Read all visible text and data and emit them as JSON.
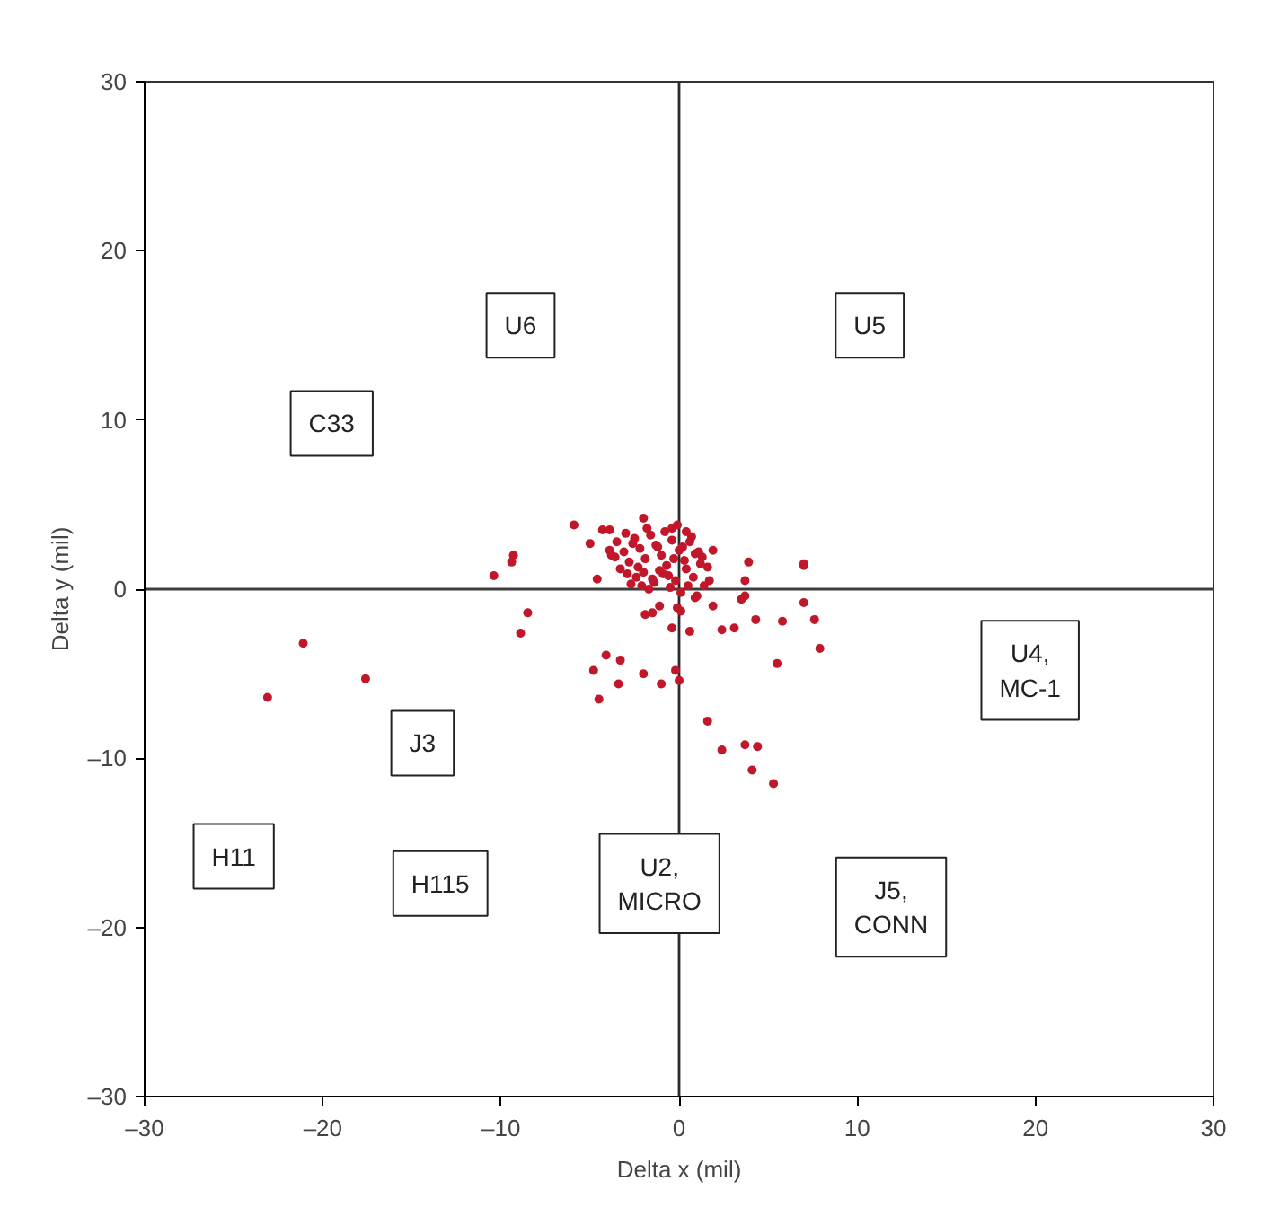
{
  "chart_data": {
    "type": "scatter",
    "xlabel": "Delta x (mil)",
    "ylabel": "Delta y (mil)",
    "xlim": [
      -30,
      30
    ],
    "ylim": [
      -30,
      30
    ],
    "xticks": [
      {
        "value": -30,
        "label": "–30"
      },
      {
        "value": -20,
        "label": "–20"
      },
      {
        "value": -10,
        "label": "–10"
      },
      0,
      10,
      20,
      30
    ],
    "yticks": [
      {
        "value": -30,
        "label": "–30"
      },
      {
        "value": -20,
        "label": "–20"
      },
      {
        "value": -10,
        "label": "–10"
      },
      0,
      10,
      20,
      30
    ],
    "grid": false,
    "marker": "circle",
    "ref_lines": [
      {
        "axis": "x",
        "value": 0,
        "color": "#2b2b2b"
      },
      {
        "axis": "y",
        "value": 0,
        "color": "#3d3d3d"
      }
    ],
    "series": [
      {
        "color": "#c0182a",
        "x": [
          -23.1,
          -21.1,
          -17.6,
          -10.4,
          -9.3,
          -9.4,
          -8.5,
          -8.9,
          -4.1,
          -4.8,
          -3.3,
          -3.4,
          -4.5,
          -2.0,
          -1.0,
          -0.2,
          0.0,
          2.4,
          3.1,
          1.6,
          2.4,
          3.7,
          4.4,
          4.1,
          5.3,
          7.0,
          5.8,
          7.6,
          7.9,
          5.5,
          4.3,
          7.0,
          3.9,
          3.7,
          3.5,
          1.9,
          0.6,
          -0.4,
          1.0,
          -1.1,
          -1.9,
          -1.5,
          0.1,
          -0.1,
          -5.9,
          -5.0,
          -4.3,
          -3.9,
          -2.0,
          -0.1,
          -0.4,
          1.9,
          1.6,
          1.7,
          -4.6,
          -3.9,
          0.9,
          3.7,
          7.0,
          -3.5,
          -3.1,
          -2.8,
          -2.5,
          -2.2,
          -1.9,
          -1.6,
          -1.3,
          -1.0,
          -0.7,
          -0.4,
          0.0,
          0.3,
          0.6,
          0.9,
          1.2,
          -3.3,
          -2.9,
          -2.4,
          -2.0,
          -1.5,
          -1.1,
          -0.6,
          -0.2,
          0.4,
          0.8,
          1.3,
          -3.6,
          -3.0,
          -2.6,
          -1.8,
          -1.2,
          -0.8,
          -0.3,
          0.2,
          0.7,
          1.1,
          -2.7,
          -2.1,
          -1.4,
          -0.5,
          0.5,
          -3.8,
          -1.7,
          0.1,
          1.4,
          -2.3,
          -0.9,
          0.4
        ],
        "values": [
          -6.4,
          -3.2,
          -5.3,
          0.8,
          2.0,
          1.6,
          -1.4,
          -2.6,
          -3.9,
          -4.8,
          -4.2,
          -5.6,
          -6.5,
          -5.0,
          -5.6,
          -4.8,
          -5.4,
          -2.4,
          -2.3,
          -7.8,
          -9.5,
          -9.2,
          -9.3,
          -10.7,
          -11.5,
          -0.8,
          -1.9,
          -1.8,
          -3.5,
          -4.4,
          -1.8,
          1.5,
          1.6,
          0.5,
          -0.6,
          -1.0,
          -2.5,
          -2.3,
          -0.4,
          -1.0,
          -1.5,
          -1.4,
          -1.3,
          -1.1,
          3.8,
          2.7,
          3.5,
          3.5,
          4.2,
          3.8,
          3.6,
          2.3,
          1.3,
          0.5,
          0.6,
          2.3,
          -0.5,
          -0.4,
          1.4,
          2.8,
          2.2,
          1.6,
          3.0,
          2.4,
          1.8,
          3.2,
          2.6,
          2.0,
          1.4,
          2.9,
          2.3,
          1.7,
          2.8,
          2.1,
          1.5,
          1.2,
          0.9,
          0.7,
          1.0,
          0.6,
          1.1,
          0.8,
          0.5,
          1.2,
          0.7,
          1.9,
          1.9,
          3.3,
          2.7,
          3.6,
          2.5,
          3.4,
          1.8,
          2.5,
          3.1,
          2.2,
          0.3,
          0.2,
          0.4,
          0.1,
          0.2,
          2.0,
          0.0,
          -0.2,
          0.2,
          1.3,
          0.9,
          3.4
        ]
      }
    ],
    "annotations": [
      "U6",
      "C33",
      "U5",
      "U4,\nMC-1",
      "J3",
      "H11",
      "H115",
      "U2,\nMICRO",
      "J5,\nCONN"
    ]
  }
}
